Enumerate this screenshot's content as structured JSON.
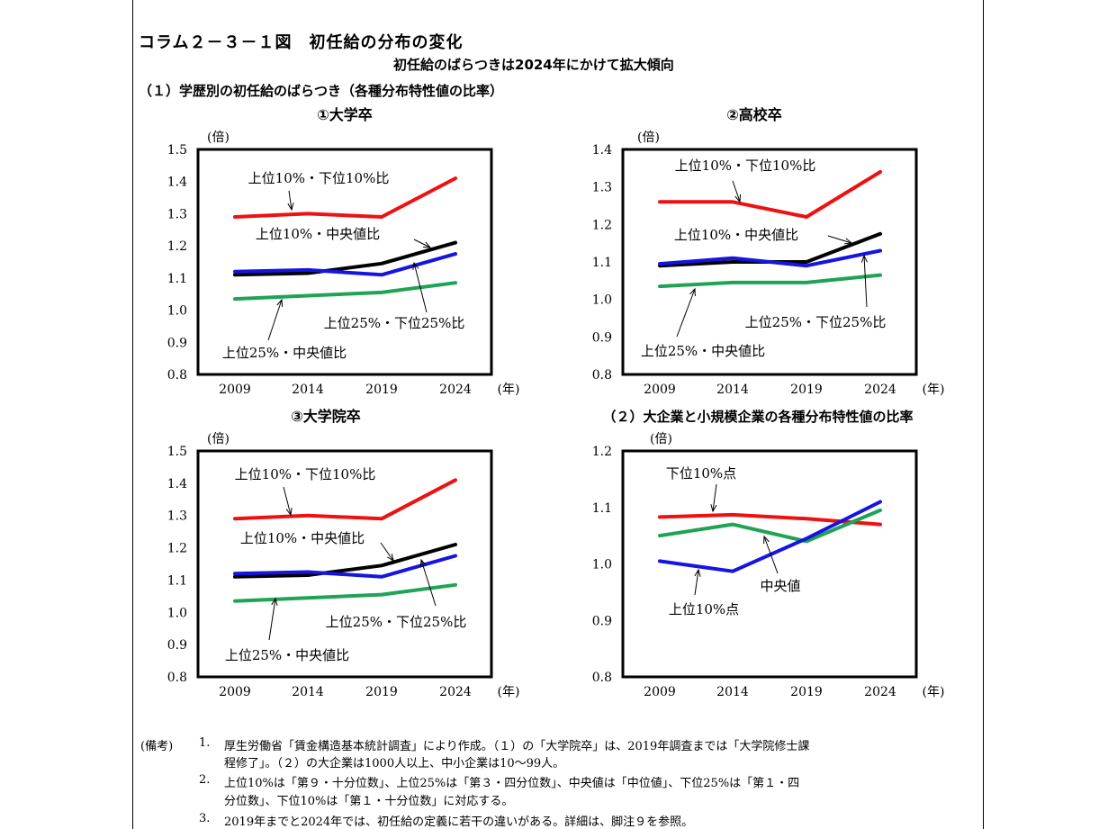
{
  "header": {
    "title": "コラム２－３－１図　初任給の分布の変化",
    "subtitle": "初任給のばらつきは2024年にかけて拡大傾向",
    "section1": "（１）学歴別の初任給のばらつき（各種分布特性値の比率）"
  },
  "colors": {
    "red": "#ee1111",
    "black": "#000000",
    "blue": "#1515e0",
    "green": "#1fa355"
  },
  "chart_data": [
    {
      "id": "univ",
      "type": "line",
      "title": "①大学卒",
      "ylabel": "(倍)",
      "xlabel": "(年)",
      "x": [
        "2009",
        "2014",
        "2019",
        "2024"
      ],
      "ylim": [
        0.8,
        1.5
      ],
      "yticks": [
        "1.5",
        "1.4",
        "1.3",
        "1.2",
        "1.1",
        "1.0",
        "0.9",
        "0.8"
      ],
      "series": [
        {
          "name": "上位10%・下位10%比",
          "color": "red",
          "values": [
            1.29,
            1.3,
            1.29,
            1.41
          ]
        },
        {
          "name": "上位10%・中央値比",
          "color": "black",
          "values": [
            1.11,
            1.115,
            1.145,
            1.21
          ]
        },
        {
          "name": "上位25%・下位25%比",
          "color": "blue",
          "values": [
            1.12,
            1.125,
            1.11,
            1.175
          ]
        },
        {
          "name": "上位25%・中央値比",
          "color": "green",
          "values": [
            1.035,
            1.045,
            1.055,
            1.085
          ]
        }
      ]
    },
    {
      "id": "high",
      "type": "line",
      "title": "②高校卒",
      "ylabel": "(倍)",
      "xlabel": "(年)",
      "x": [
        "2009",
        "2014",
        "2019",
        "2024"
      ],
      "ylim": [
        0.8,
        1.4
      ],
      "yticks": [
        "1.4",
        "1.3",
        "1.2",
        "1.1",
        "1.0",
        "0.9",
        "0.8"
      ],
      "series": [
        {
          "name": "上位10%・下位10%比",
          "color": "red",
          "values": [
            1.26,
            1.26,
            1.22,
            1.34
          ]
        },
        {
          "name": "上位10%・中央値比",
          "color": "black",
          "values": [
            1.09,
            1.1,
            1.1,
            1.175
          ]
        },
        {
          "name": "上位25%・下位25%比",
          "color": "blue",
          "values": [
            1.095,
            1.11,
            1.09,
            1.13
          ]
        },
        {
          "name": "上位25%・中央値比",
          "color": "green",
          "values": [
            1.035,
            1.045,
            1.045,
            1.065
          ]
        }
      ]
    },
    {
      "id": "grad",
      "type": "line",
      "title": "③大学院卒",
      "ylabel": "(倍)",
      "xlabel": "(年)",
      "x": [
        "2009",
        "2014",
        "2019",
        "2024"
      ],
      "ylim": [
        0.8,
        1.5
      ],
      "yticks": [
        "1.5",
        "1.4",
        "1.3",
        "1.2",
        "1.1",
        "1.0",
        "0.9",
        "0.8"
      ],
      "series": [
        {
          "name": "上位10%・下位10%比",
          "color": "red",
          "values": [
            1.29,
            1.3,
            1.29,
            1.41
          ]
        },
        {
          "name": "上位10%・中央値比",
          "color": "black",
          "values": [
            1.11,
            1.115,
            1.145,
            1.21
          ]
        },
        {
          "name": "上位25%・下位25%比",
          "color": "blue",
          "values": [
            1.12,
            1.125,
            1.11,
            1.175
          ]
        },
        {
          "name": "上位25%・中央値比",
          "color": "green",
          "values": [
            1.035,
            1.045,
            1.055,
            1.085
          ]
        }
      ]
    },
    {
      "id": "firm",
      "type": "line",
      "title": "（２）大企業と小規模企業の各種分布特性値の比率",
      "ylabel": "(倍)",
      "xlabel": "(年)",
      "x": [
        "2009",
        "2014",
        "2019",
        "2024"
      ],
      "ylim": [
        0.8,
        1.2
      ],
      "yticks": [
        "1.2",
        "1.1",
        "1.0",
        "0.9",
        "0.8"
      ],
      "series": [
        {
          "name": "下位10%点",
          "color": "red",
          "values": [
            1.083,
            1.087,
            1.08,
            1.07
          ]
        },
        {
          "name": "中央値",
          "color": "green",
          "values": [
            1.05,
            1.07,
            1.04,
            1.095
          ]
        },
        {
          "name": "上位10%点",
          "color": "blue",
          "values": [
            1.005,
            0.987,
            1.045,
            1.11
          ]
        }
      ]
    }
  ],
  "notes": {
    "label": "(備考)",
    "n1_num": "1.",
    "n1_l1": "厚生労働省「賃金構造基本統計調査」により作成。（１）の「大学院卒」は、2019年調査までは「大学院修士課",
    "n1_l2": "程修了」。（２）の大企業は1000人以上、中小企業は10～99人。",
    "n2_num": "2.",
    "n2_l1": "上位10%は「第９・十分位数」、上位25%は「第３・四分位数」、中央値は「中位値」、下位25%は「第１・四",
    "n2_l2": "分位数」、下位10%は「第１・十分位数」に対応する。",
    "n3_num": "3.",
    "n3_l1": "2019年までと2024年では、初任給の定義に若干の違いがある。詳細は、脚注９を参照。"
  }
}
